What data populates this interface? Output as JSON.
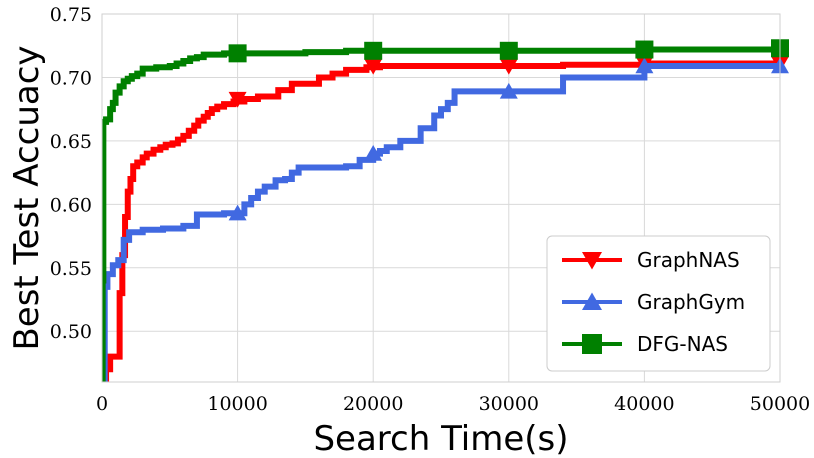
{
  "chart_data": {
    "type": "line",
    "xlabel": "Search Time(s)",
    "ylabel": "Best Test Accuacy",
    "xlim": [
      0,
      50000
    ],
    "ylim": [
      0.46,
      0.75
    ],
    "xticks": [
      0,
      10000,
      20000,
      30000,
      40000,
      50000
    ],
    "xtick_labels": [
      "0",
      "10000",
      "20000",
      "30000",
      "40000",
      "50000"
    ],
    "yticks": [
      0.5,
      0.55,
      0.6,
      0.65,
      0.7,
      0.75
    ],
    "ytick_labels": [
      "0.50",
      "0.55",
      "0.60",
      "0.65",
      "0.70",
      "0.75"
    ],
    "grid": true,
    "legend_position": "bottom-right",
    "series": [
      {
        "name": "GraphNAS",
        "color": "#ff0000",
        "marker": "triangle-down",
        "x": [
          0,
          300,
          600,
          1300,
          1500,
          1700,
          1900,
          2100,
          2300,
          2600,
          3000,
          3300,
          3800,
          4300,
          4700,
          5200,
          5600,
          6000,
          6400,
          6800,
          7100,
          7500,
          7800,
          8100,
          8500,
          9000,
          9700,
          10500,
          11500,
          13000,
          14000,
          16000,
          17000,
          18000,
          19500,
          20500,
          24000,
          30000,
          34000,
          40000,
          50000
        ],
        "y": [
          0.46,
          0.47,
          0.48,
          0.53,
          0.56,
          0.59,
          0.61,
          0.62,
          0.63,
          0.633,
          0.637,
          0.64,
          0.643,
          0.645,
          0.647,
          0.648,
          0.651,
          0.654,
          0.658,
          0.662,
          0.666,
          0.669,
          0.672,
          0.675,
          0.677,
          0.679,
          0.681,
          0.683,
          0.685,
          0.69,
          0.695,
          0.7,
          0.703,
          0.706,
          0.708,
          0.709,
          0.709,
          0.709,
          0.71,
          0.711,
          0.711
        ],
        "marker_x": [
          10000,
          20000,
          30000,
          40000,
          50000
        ],
        "marker_y": [
          0.683,
          0.709,
          0.709,
          0.711,
          0.711
        ]
      },
      {
        "name": "GraphGym",
        "color": "#4169e1",
        "marker": "triangle-up",
        "x": [
          0,
          200,
          400,
          800,
          1200,
          1600,
          2000,
          3000,
          4500,
          6000,
          7000,
          9000,
          10200,
          10500,
          11000,
          11500,
          12000,
          12800,
          13500,
          14000,
          14500,
          18000,
          19000,
          20000,
          20500,
          21000,
          22000,
          23500,
          24500,
          25000,
          25500,
          26000,
          30000,
          34000,
          40000,
          50000
        ],
        "y": [
          0.46,
          0.535,
          0.545,
          0.552,
          0.556,
          0.572,
          0.578,
          0.58,
          0.581,
          0.583,
          0.592,
          0.593,
          0.593,
          0.6,
          0.605,
          0.61,
          0.614,
          0.619,
          0.62,
          0.625,
          0.629,
          0.63,
          0.635,
          0.64,
          0.642,
          0.645,
          0.65,
          0.66,
          0.67,
          0.675,
          0.68,
          0.689,
          0.689,
          0.7,
          0.709,
          0.709
        ],
        "marker_x": [
          10000,
          20000,
          30000,
          40000,
          50000
        ],
        "marker_y": [
          0.593,
          0.64,
          0.689,
          0.709,
          0.709
        ]
      },
      {
        "name": "DFG-NAS",
        "color": "#008000",
        "marker": "square",
        "x": [
          0,
          50,
          100,
          300,
          600,
          800,
          1000,
          1300,
          1600,
          1900,
          2200,
          2600,
          3000,
          4000,
          5000,
          5500,
          6000,
          6500,
          7000,
          7500,
          9000,
          12000,
          15000,
          18000,
          20000,
          30000,
          40000,
          50000
        ],
        "y": [
          0.46,
          0.54,
          0.665,
          0.667,
          0.675,
          0.68,
          0.688,
          0.693,
          0.697,
          0.699,
          0.701,
          0.703,
          0.707,
          0.708,
          0.709,
          0.711,
          0.713,
          0.715,
          0.716,
          0.718,
          0.719,
          0.719,
          0.72,
          0.721,
          0.721,
          0.721,
          0.722,
          0.723
        ],
        "marker_x": [
          10000,
          20000,
          30000,
          40000,
          50000
        ],
        "marker_y": [
          0.719,
          0.721,
          0.721,
          0.722,
          0.723
        ]
      }
    ]
  }
}
